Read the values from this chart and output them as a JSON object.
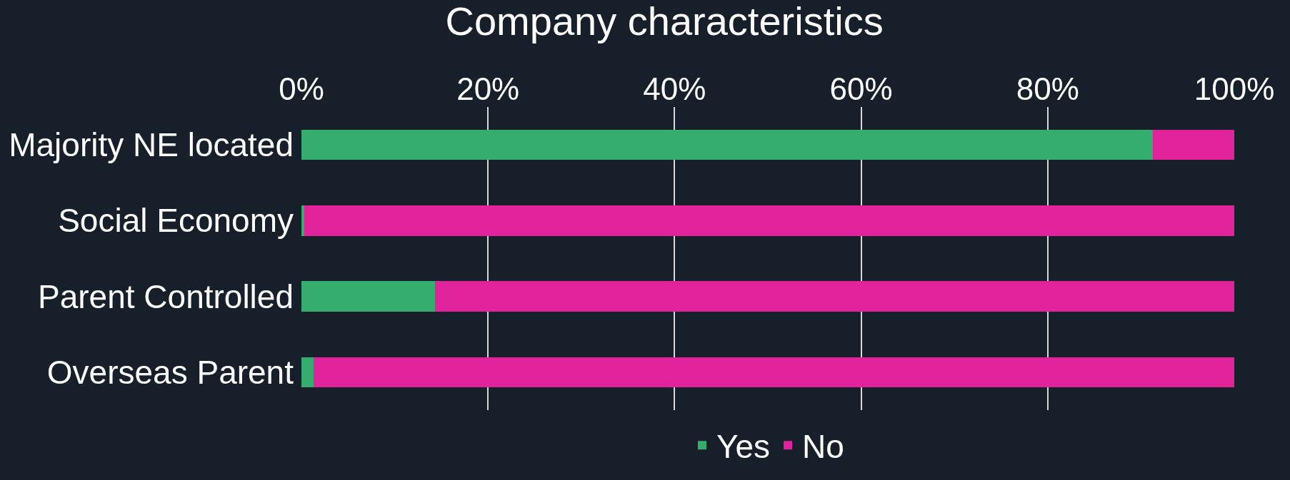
{
  "chart_data": {
    "type": "bar",
    "title": "Company characteristics",
    "orientation": "horizontal",
    "stacked": true,
    "categories": [
      "Majority NE located",
      "Social Economy",
      "Parent Controlled",
      "Overseas Parent"
    ],
    "series": [
      {
        "name": "Yes",
        "color": "#34ad6f",
        "values": [
          91.3,
          0.3,
          14.3,
          1.3
        ]
      },
      {
        "name": "No",
        "color": "#e0229b",
        "values": [
          8.7,
          99.7,
          85.7,
          98.7
        ]
      }
    ],
    "xlim": [
      0,
      100
    ],
    "xticks": [
      {
        "value": 0,
        "label": "0%"
      },
      {
        "value": 20,
        "label": "20%"
      },
      {
        "value": 40,
        "label": "40%"
      },
      {
        "value": 60,
        "label": "60%"
      },
      {
        "value": 80,
        "label": "80%"
      },
      {
        "value": 100,
        "label": "100%"
      }
    ],
    "grid": "x",
    "legend": "bottom"
  }
}
